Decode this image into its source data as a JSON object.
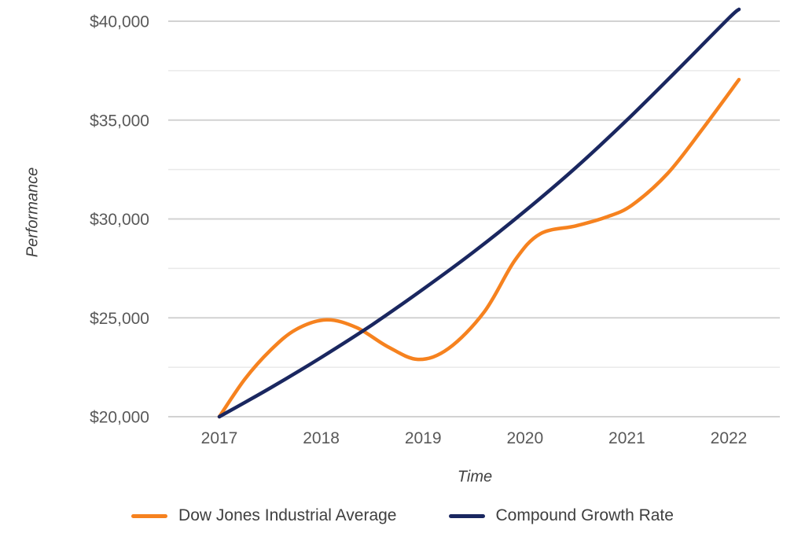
{
  "chart_data": {
    "type": "line",
    "title": "",
    "xlabel": "Time",
    "ylabel": "Performance",
    "x_ticks": [
      {
        "label": "2017",
        "value": 2017
      },
      {
        "label": "2018",
        "value": 2018
      },
      {
        "label": "2019",
        "value": 2019
      },
      {
        "label": "2020",
        "value": 2020
      },
      {
        "label": "2021",
        "value": 2021
      },
      {
        "label": "2022",
        "value": 2022
      }
    ],
    "y_ticks": [
      {
        "label": "$20,000",
        "value": 20000
      },
      {
        "label": "$25,000",
        "value": 25000
      },
      {
        "label": "$30,000",
        "value": 30000
      },
      {
        "label": "$35,000",
        "value": 35000
      },
      {
        "label": "$40,000",
        "value": 40000
      }
    ],
    "y_minor_step": 2500,
    "ylim": [
      20000,
      40600
    ],
    "grid": "horizontal-only, minor gridlines every 2500",
    "legend_position": "bottom-center",
    "series": [
      {
        "name": "Dow Jones Industrial Average",
        "color": "#F6821F",
        "points": [
          [
            2017.0,
            20000
          ],
          [
            2017.25,
            21900
          ],
          [
            2017.5,
            23350
          ],
          [
            2017.75,
            24400
          ],
          [
            2018.05,
            24900
          ],
          [
            2018.35,
            24500
          ],
          [
            2018.65,
            23550
          ],
          [
            2018.95,
            22900
          ],
          [
            2019.25,
            23450
          ],
          [
            2019.6,
            25300
          ],
          [
            2019.9,
            27900
          ],
          [
            2020.15,
            29250
          ],
          [
            2020.5,
            29650
          ],
          [
            2020.8,
            30100
          ],
          [
            2021.05,
            30700
          ],
          [
            2021.4,
            32300
          ],
          [
            2021.75,
            34600
          ],
          [
            2022.1,
            37050
          ]
        ]
      },
      {
        "name": "Compound Growth Rate",
        "color": "#1A2760",
        "points": [
          [
            2017.0,
            20000
          ],
          [
            2017.5,
            21450
          ],
          [
            2018.0,
            23000
          ],
          [
            2018.5,
            24650
          ],
          [
            2019.0,
            26450
          ],
          [
            2019.5,
            28350
          ],
          [
            2020.0,
            30400
          ],
          [
            2020.5,
            32600
          ],
          [
            2021.0,
            35000
          ],
          [
            2021.5,
            37550
          ],
          [
            2022.0,
            40150
          ],
          [
            2022.1,
            40600
          ]
        ]
      }
    ],
    "yearly_values": {
      "years": [
        2017,
        2018,
        2019,
        2020,
        2021,
        2022
      ],
      "dow_jones_industrial_average": [
        20000,
        24850,
        22950,
        28600,
        30600,
        36500
      ],
      "compound_growth_rate": [
        20000,
        23000,
        26450,
        30400,
        35000,
        40150
      ]
    }
  },
  "colors": {
    "background": "#ffffff",
    "grid_major": "#d2d2d2",
    "grid_minor": "#e9e9e9",
    "tick_text": "#595959",
    "axis_title_text": "#404040",
    "legend_text": "#3f3f3f",
    "dow_jones_line": "#F6821F",
    "compound_growth_line": "#1A2760"
  }
}
